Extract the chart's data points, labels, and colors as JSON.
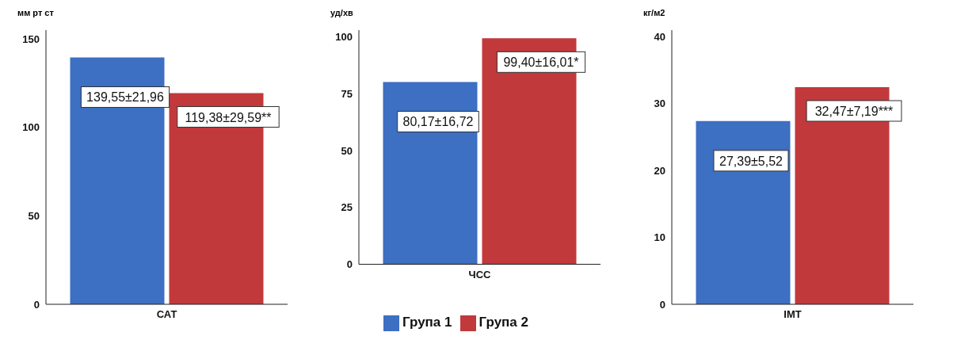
{
  "chart_data": [
    {
      "type": "bar",
      "ylabel": "мм рт ст",
      "categories": [
        "САТ"
      ],
      "ylim": [
        0,
        155
      ],
      "yticks": [
        0,
        50,
        100,
        150
      ],
      "grid": false,
      "legend": false,
      "series": [
        {
          "color": "#3d6fc2",
          "values": [
            139.55
          ],
          "value_labels": [
            "139,55±21,96"
          ]
        },
        {
          "color": "#c2393c",
          "values": [
            119.38
          ],
          "value_labels": [
            "119,38±29,59**"
          ]
        }
      ]
    },
    {
      "type": "bar",
      "ylabel": "уд/хв",
      "categories": [
        "ЧСС"
      ],
      "ylim": [
        0,
        103
      ],
      "yticks": [
        0,
        25,
        50,
        75,
        100
      ],
      "grid": false,
      "legend": "bottom",
      "series": [
        {
          "name": "Група 1",
          "color": "#3d6fc2",
          "values": [
            80.17
          ],
          "value_labels": [
            "80,17±16,72"
          ]
        },
        {
          "name": "Група 2",
          "color": "#c2393c",
          "values": [
            99.4
          ],
          "value_labels": [
            "99,40±16,01*"
          ]
        }
      ]
    },
    {
      "type": "bar",
      "ylabel": "кг/м2",
      "categories": [
        "ІМТ"
      ],
      "ylim": [
        0,
        41
      ],
      "yticks": [
        0,
        10,
        20,
        30,
        40
      ],
      "grid": false,
      "legend": false,
      "series": [
        {
          "color": "#3d6fc2",
          "values": [
            27.39
          ],
          "value_labels": [
            "27,39±5,52"
          ]
        },
        {
          "color": "#c2393c",
          "values": [
            32.47
          ],
          "value_labels": [
            "32,47±7,19***"
          ]
        }
      ]
    }
  ]
}
